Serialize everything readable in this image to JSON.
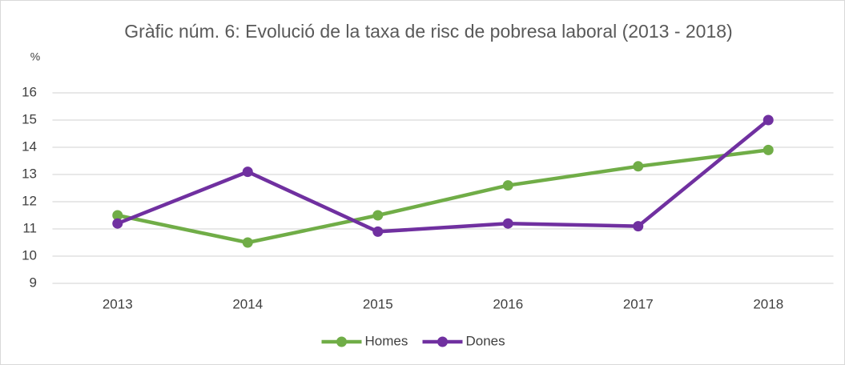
{
  "chart_data": {
    "type": "line",
    "title": "Gràfic núm. 6: Evolució de la taxa de risc de pobresa laboral (2013 - 2018)",
    "y_label": "%",
    "categories": [
      "2013",
      "2014",
      "2015",
      "2016",
      "2017",
      "2018"
    ],
    "series": [
      {
        "name": "Homes",
        "color": "#70ad47",
        "values": [
          11.5,
          10.5,
          11.5,
          12.6,
          13.3,
          13.9
        ]
      },
      {
        "name": "Dones",
        "color": "#7030a0",
        "values": [
          11.2,
          13.1,
          10.9,
          11.2,
          11.1,
          15.0
        ]
      }
    ],
    "ylim": [
      9,
      16
    ],
    "yticks": [
      9,
      10,
      11,
      12,
      13,
      14,
      15,
      16
    ],
    "grid": true,
    "legend": "bottom"
  }
}
